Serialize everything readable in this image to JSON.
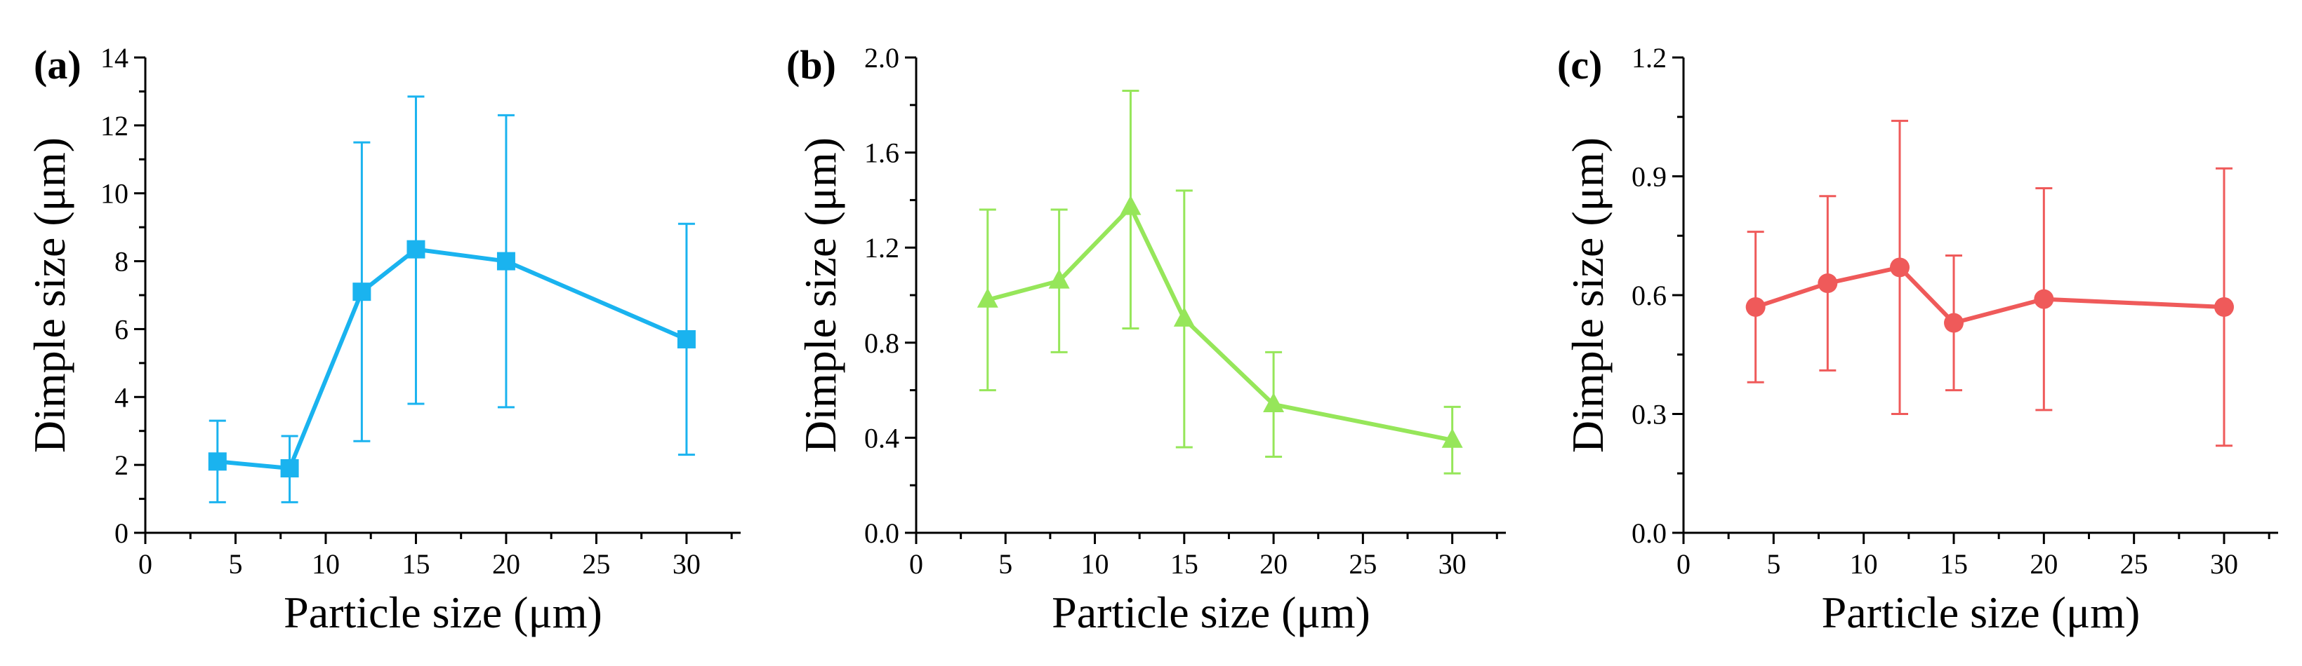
{
  "chart_data": [
    {
      "type": "line",
      "panel_label": "(a)",
      "color": "#1ab3ef",
      "marker": "square",
      "xlabel": "Particle size (μm)",
      "ylabel": "Dimple size (μm)",
      "xlim": [
        0,
        33
      ],
      "ylim": [
        0,
        14
      ],
      "xticks": [
        0,
        5,
        10,
        15,
        20,
        25,
        30
      ],
      "yticks": [
        0,
        2,
        4,
        6,
        8,
        10,
        12,
        14
      ],
      "xtick_labels": [
        "0",
        "5",
        "10",
        "15",
        "20",
        "25",
        "30"
      ],
      "ytick_labels": [
        "0",
        "2",
        "4",
        "6",
        "8",
        "10",
        "12",
        "14"
      ],
      "x": [
        4,
        8,
        12,
        15,
        20,
        30
      ],
      "y": [
        2.1,
        1.9,
        7.1,
        8.35,
        8.0,
        5.7
      ],
      "y_err_low": [
        0.9,
        0.9,
        2.7,
        3.8,
        3.7,
        2.3
      ],
      "y_err_high": [
        3.3,
        2.85,
        11.5,
        12.85,
        12.3,
        9.1
      ]
    },
    {
      "type": "line",
      "panel_label": "(b)",
      "color": "#96e65a",
      "marker": "triangle",
      "xlabel": "Particle size (μm)",
      "ylabel": "Dimple size (μm)",
      "xlim": [
        0,
        33
      ],
      "ylim": [
        0,
        2.0
      ],
      "xticks": [
        0,
        5,
        10,
        15,
        20,
        25,
        30
      ],
      "yticks": [
        0,
        0.4,
        0.8,
        1.2,
        1.6,
        2.0
      ],
      "xtick_labels": [
        "0",
        "5",
        "10",
        "15",
        "20",
        "25",
        "30"
      ],
      "ytick_labels": [
        "0.0",
        "0.4",
        "0.8",
        "1.2",
        "1.6",
        "2.0"
      ],
      "x": [
        4,
        8,
        12,
        15,
        20,
        30
      ],
      "y": [
        0.98,
        1.06,
        1.37,
        0.9,
        0.54,
        0.39
      ],
      "y_err_low": [
        0.6,
        0.76,
        0.86,
        0.36,
        0.32,
        0.25
      ],
      "y_err_high": [
        1.36,
        1.36,
        1.86,
        1.44,
        0.76,
        0.53
      ]
    },
    {
      "type": "line",
      "panel_label": "(c)",
      "color": "#ef5a5a",
      "marker": "circle",
      "xlabel": "Particle size (μm)",
      "ylabel": "Dimple size (μm)",
      "xlim": [
        0,
        33
      ],
      "ylim": [
        0,
        1.2
      ],
      "xticks": [
        0,
        5,
        10,
        15,
        20,
        25,
        30
      ],
      "yticks": [
        0,
        0.3,
        0.6,
        0.9,
        1.2
      ],
      "xtick_labels": [
        "0",
        "5",
        "10",
        "15",
        "20",
        "25",
        "30"
      ],
      "ytick_labels": [
        "0.0",
        "0.3",
        "0.6",
        "0.9",
        "1.2"
      ],
      "x": [
        4,
        8,
        12,
        15,
        20,
        30
      ],
      "y": [
        0.57,
        0.63,
        0.67,
        0.53,
        0.59,
        0.57
      ],
      "y_err_low": [
        0.38,
        0.41,
        0.3,
        0.36,
        0.31,
        0.22
      ],
      "y_err_high": [
        0.76,
        0.85,
        1.04,
        0.7,
        0.87,
        0.92
      ]
    }
  ]
}
